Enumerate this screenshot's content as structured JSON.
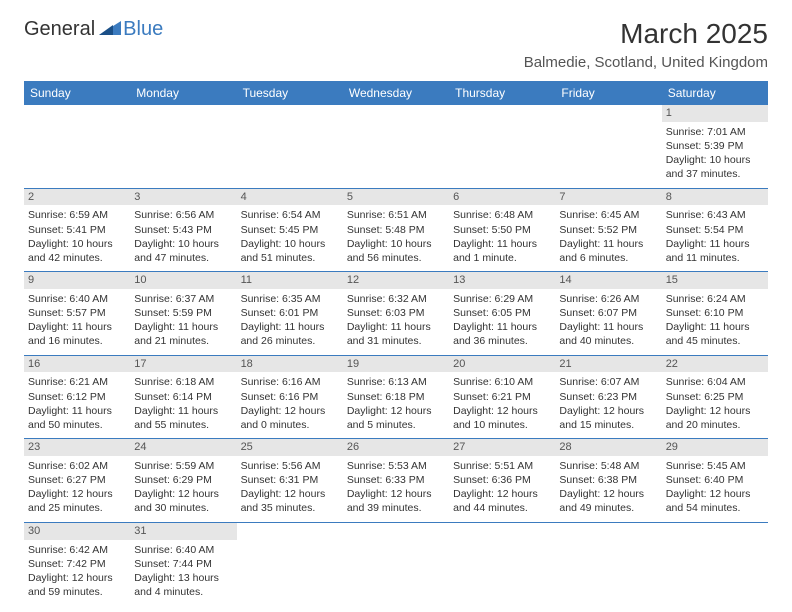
{
  "logo": {
    "general": "General",
    "blue": "Blue"
  },
  "title": "March 2025",
  "location": "Balmedie, Scotland, United Kingdom",
  "colors": {
    "header_bg": "#3b7bbf",
    "header_text": "#ffffff",
    "daynum_bg": "#e6e6e6",
    "border": "#3b7bbf",
    "text": "#333333",
    "background": "#ffffff"
  },
  "weekdays": [
    "Sunday",
    "Monday",
    "Tuesday",
    "Wednesday",
    "Thursday",
    "Friday",
    "Saturday"
  ],
  "weeks": [
    [
      {
        "blank": true
      },
      {
        "blank": true
      },
      {
        "blank": true
      },
      {
        "blank": true
      },
      {
        "blank": true
      },
      {
        "blank": true
      },
      {
        "n": "1",
        "sunrise": "7:01 AM",
        "sunset": "5:39 PM",
        "daylight": "10 hours and 37 minutes."
      }
    ],
    [
      {
        "n": "2",
        "sunrise": "6:59 AM",
        "sunset": "5:41 PM",
        "daylight": "10 hours and 42 minutes."
      },
      {
        "n": "3",
        "sunrise": "6:56 AM",
        "sunset": "5:43 PM",
        "daylight": "10 hours and 47 minutes."
      },
      {
        "n": "4",
        "sunrise": "6:54 AM",
        "sunset": "5:45 PM",
        "daylight": "10 hours and 51 minutes."
      },
      {
        "n": "5",
        "sunrise": "6:51 AM",
        "sunset": "5:48 PM",
        "daylight": "10 hours and 56 minutes."
      },
      {
        "n": "6",
        "sunrise": "6:48 AM",
        "sunset": "5:50 PM",
        "daylight": "11 hours and 1 minute."
      },
      {
        "n": "7",
        "sunrise": "6:45 AM",
        "sunset": "5:52 PM",
        "daylight": "11 hours and 6 minutes."
      },
      {
        "n": "8",
        "sunrise": "6:43 AM",
        "sunset": "5:54 PM",
        "daylight": "11 hours and 11 minutes."
      }
    ],
    [
      {
        "n": "9",
        "sunrise": "6:40 AM",
        "sunset": "5:57 PM",
        "daylight": "11 hours and 16 minutes."
      },
      {
        "n": "10",
        "sunrise": "6:37 AM",
        "sunset": "5:59 PM",
        "daylight": "11 hours and 21 minutes."
      },
      {
        "n": "11",
        "sunrise": "6:35 AM",
        "sunset": "6:01 PM",
        "daylight": "11 hours and 26 minutes."
      },
      {
        "n": "12",
        "sunrise": "6:32 AM",
        "sunset": "6:03 PM",
        "daylight": "11 hours and 31 minutes."
      },
      {
        "n": "13",
        "sunrise": "6:29 AM",
        "sunset": "6:05 PM",
        "daylight": "11 hours and 36 minutes."
      },
      {
        "n": "14",
        "sunrise": "6:26 AM",
        "sunset": "6:07 PM",
        "daylight": "11 hours and 40 minutes."
      },
      {
        "n": "15",
        "sunrise": "6:24 AM",
        "sunset": "6:10 PM",
        "daylight": "11 hours and 45 minutes."
      }
    ],
    [
      {
        "n": "16",
        "sunrise": "6:21 AM",
        "sunset": "6:12 PM",
        "daylight": "11 hours and 50 minutes."
      },
      {
        "n": "17",
        "sunrise": "6:18 AM",
        "sunset": "6:14 PM",
        "daylight": "11 hours and 55 minutes."
      },
      {
        "n": "18",
        "sunrise": "6:16 AM",
        "sunset": "6:16 PM",
        "daylight": "12 hours and 0 minutes."
      },
      {
        "n": "19",
        "sunrise": "6:13 AM",
        "sunset": "6:18 PM",
        "daylight": "12 hours and 5 minutes."
      },
      {
        "n": "20",
        "sunrise": "6:10 AM",
        "sunset": "6:21 PM",
        "daylight": "12 hours and 10 minutes."
      },
      {
        "n": "21",
        "sunrise": "6:07 AM",
        "sunset": "6:23 PM",
        "daylight": "12 hours and 15 minutes."
      },
      {
        "n": "22",
        "sunrise": "6:04 AM",
        "sunset": "6:25 PM",
        "daylight": "12 hours and 20 minutes."
      }
    ],
    [
      {
        "n": "23",
        "sunrise": "6:02 AM",
        "sunset": "6:27 PM",
        "daylight": "12 hours and 25 minutes."
      },
      {
        "n": "24",
        "sunrise": "5:59 AM",
        "sunset": "6:29 PM",
        "daylight": "12 hours and 30 minutes."
      },
      {
        "n": "25",
        "sunrise": "5:56 AM",
        "sunset": "6:31 PM",
        "daylight": "12 hours and 35 minutes."
      },
      {
        "n": "26",
        "sunrise": "5:53 AM",
        "sunset": "6:33 PM",
        "daylight": "12 hours and 39 minutes."
      },
      {
        "n": "27",
        "sunrise": "5:51 AM",
        "sunset": "6:36 PM",
        "daylight": "12 hours and 44 minutes."
      },
      {
        "n": "28",
        "sunrise": "5:48 AM",
        "sunset": "6:38 PM",
        "daylight": "12 hours and 49 minutes."
      },
      {
        "n": "29",
        "sunrise": "5:45 AM",
        "sunset": "6:40 PM",
        "daylight": "12 hours and 54 minutes."
      }
    ],
    [
      {
        "n": "30",
        "sunrise": "6:42 AM",
        "sunset": "7:42 PM",
        "daylight": "12 hours and 59 minutes."
      },
      {
        "n": "31",
        "sunrise": "6:40 AM",
        "sunset": "7:44 PM",
        "daylight": "13 hours and 4 minutes."
      },
      {
        "blank": true
      },
      {
        "blank": true
      },
      {
        "blank": true
      },
      {
        "blank": true
      },
      {
        "blank": true
      }
    ]
  ],
  "labels": {
    "sunrise": "Sunrise:",
    "sunset": "Sunset:",
    "daylight": "Daylight:"
  }
}
